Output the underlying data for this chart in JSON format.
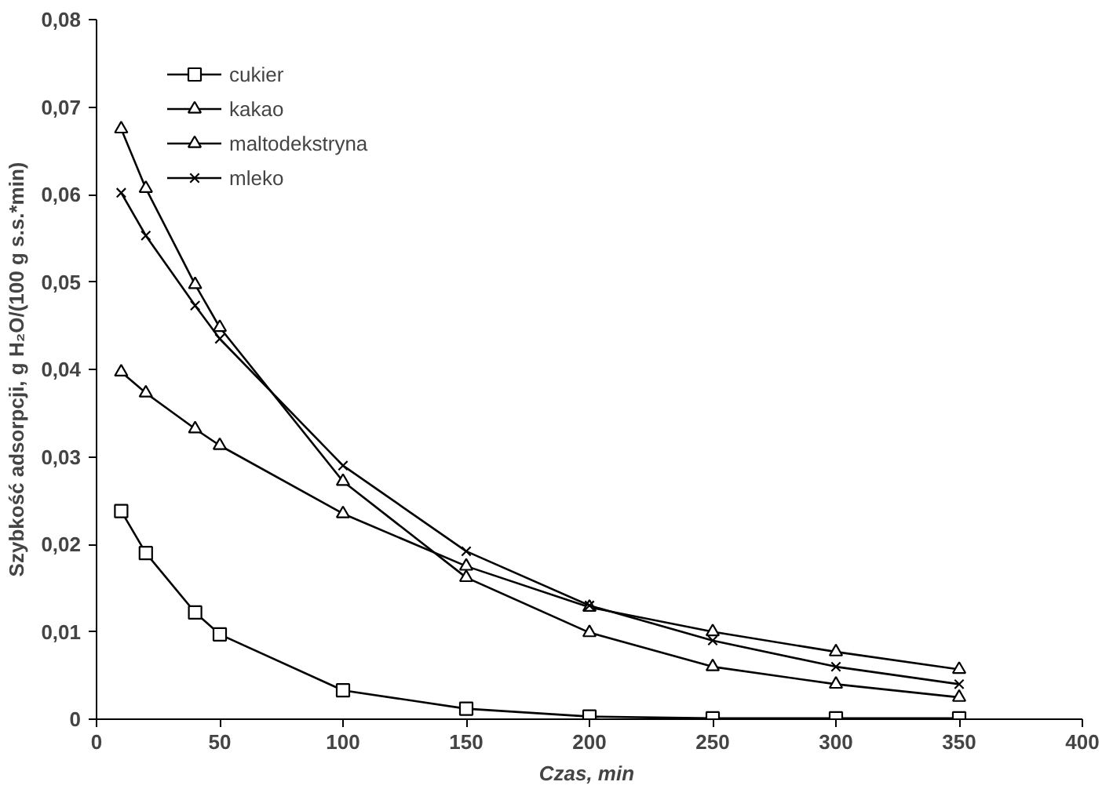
{
  "chart_data": {
    "type": "line",
    "xlabel": "Czas,  min",
    "ylabel": "Szybkość adsorpcji, g H₂O/(100 g s.s.*min)",
    "x": [
      10,
      20,
      40,
      50,
      100,
      150,
      200,
      250,
      300,
      350
    ],
    "xlim": [
      0,
      400
    ],
    "xticks": [
      0,
      50,
      100,
      150,
      200,
      250,
      300,
      350,
      400
    ],
    "ylim": [
      0,
      0.08
    ],
    "yticks": [
      0,
      {
        "value": 0.01,
        "label": "0,01"
      },
      {
        "value": 0.02,
        "label": "0,02"
      },
      {
        "value": 0.03,
        "label": "0,03"
      },
      {
        "value": 0.04,
        "label": "0,04"
      },
      {
        "value": 0.05,
        "label": "0,05"
      },
      {
        "value": 0.06,
        "label": "0,06"
      },
      {
        "value": 0.07,
        "label": "0,07"
      },
      {
        "value": 0.08,
        "label": "0,08"
      }
    ],
    "grid": false,
    "legend": "top left",
    "line_style": "solid",
    "series": [
      {
        "name": "cukier",
        "color": "#000000",
        "marker": "square",
        "values": [
          0.0238,
          0.019,
          0.0122,
          0.0097,
          0.0033,
          0.0012,
          0.0003,
          0.0001,
          0.0001,
          0.0001
        ]
      },
      {
        "name": "kakao",
        "color": "#000000",
        "marker": "triangle",
        "values": [
          0.0675,
          0.0607,
          0.0497,
          0.0448,
          0.0272,
          0.0162,
          0.0099,
          0.006,
          0.004,
          0.0025
        ]
      },
      {
        "name": "maltodekstryna",
        "color": "#000000",
        "marker": "triangle",
        "values": [
          0.0397,
          0.0373,
          0.0332,
          0.0313,
          0.0235,
          0.0175,
          0.0128,
          0.01,
          0.0077,
          0.0057
        ]
      },
      {
        "name": "mleko",
        "color": "#000000",
        "marker": "cross",
        "values": [
          0.0602,
          0.0553,
          0.0473,
          0.0435,
          0.029,
          0.0192,
          0.013,
          0.009,
          0.006,
          0.004
        ]
      }
    ]
  }
}
